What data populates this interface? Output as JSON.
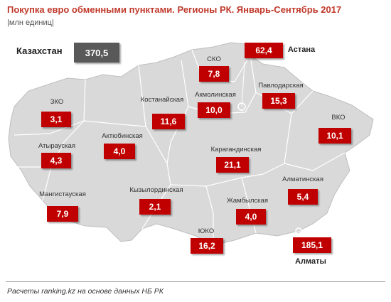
{
  "title": "Покупка евро обменными пунктами. Регионы РК. Январь-Сентябрь 2017",
  "subtitle": "|млн единиц|",
  "country": {
    "label": "Казахстан",
    "value": "370,5"
  },
  "regions": [
    {
      "key": "zko",
      "name": "ЗКО",
      "value": "3,1"
    },
    {
      "key": "atyrau",
      "name": "Атырауская",
      "value": "4,3"
    },
    {
      "key": "mangistau",
      "name": "Мангистауская",
      "value": "7,9"
    },
    {
      "key": "aktobe",
      "name": "Актюбинская",
      "value": "4,0"
    },
    {
      "key": "kostanay",
      "name": "Костанайская",
      "value": "11,6"
    },
    {
      "key": "kyzylorda",
      "name": "Кызылординская",
      "value": "2,1"
    },
    {
      "key": "sko",
      "name": "СКО",
      "value": "7,8"
    },
    {
      "key": "akmola",
      "name": "Акмолинская",
      "value": "10,0"
    },
    {
      "key": "pavlodar",
      "name": "Павлодарская",
      "value": "15,3"
    },
    {
      "key": "vko",
      "name": "ВКО",
      "value": "10,1"
    },
    {
      "key": "karaganda",
      "name": "Карагандинская",
      "value": "21,1"
    },
    {
      "key": "almaty_obl",
      "name": "Алматинская",
      "value": "5,4"
    },
    {
      "key": "zhambyl",
      "name": "Жамбылская",
      "value": "4,0"
    },
    {
      "key": "yuko",
      "name": "ЮКО",
      "value": "16,2"
    }
  ],
  "cities": [
    {
      "key": "astana",
      "name": "Астана",
      "value": "62,4"
    },
    {
      "key": "almaty",
      "name": "Алматы",
      "value": "185,1"
    }
  ],
  "colors": {
    "land": "#d9d9d9",
    "border": "#ffffff",
    "value_box": "#c00000",
    "country_box": "#595959"
  },
  "source": "Расчеты ranking.kz на основе данных НБ РК"
}
